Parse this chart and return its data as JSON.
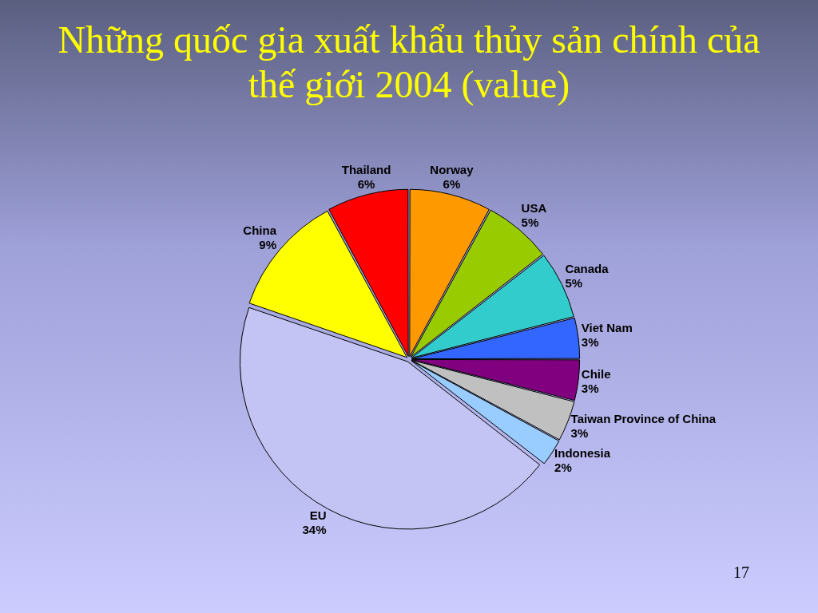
{
  "chart_data": {
    "type": "pie",
    "title": "Những quốc gia xuất khẩu thủy sản chính của thế giới 2004 (value)",
    "categories": [
      "Norway",
      "USA",
      "Canada",
      "Viet Nam",
      "Chile",
      "Taiwan Province of China",
      "Indonesia",
      "EU",
      "China",
      "Thailand"
    ],
    "values": [
      6,
      5,
      5,
      3,
      3,
      3,
      2,
      34,
      9,
      6
    ],
    "value_labels": [
      "6%",
      "5%",
      "5%",
      "3%",
      "3%",
      "3%",
      "2%",
      "34%",
      "9%",
      "6%"
    ],
    "colors": [
      "#ff9900",
      "#99cc00",
      "#33cccc",
      "#3366ff",
      "#800080",
      "#c0c0c0",
      "#99ccff",
      "#c4c4f4",
      "#ffff00",
      "#ff0000"
    ],
    "annotations": [
      "17"
    ],
    "legend": false
  }
}
